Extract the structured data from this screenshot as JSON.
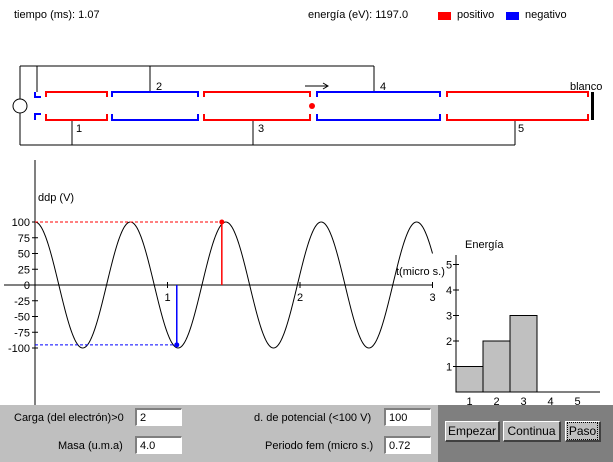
{
  "header": {
    "time_label": "tiempo (ms): 1.07",
    "energy_label": "energía (eV): 1197.0",
    "legend_positive": "positivo",
    "legend_negative": "negativo",
    "positive_color": "#ff0000",
    "negative_color": "#0000ff"
  },
  "accelerator": {
    "target_label": "blanco",
    "tube_labels_top": [
      "2",
      "4"
    ],
    "tube_labels_bottom": [
      "1",
      "3",
      "5"
    ]
  },
  "voltage_chart": {
    "ylabel": "ddp (V)",
    "xlabel": "t(micro s.)",
    "y_ticks": [
      "100",
      "75",
      "50",
      "25",
      "0",
      "-25",
      "-50",
      "-75",
      "-100"
    ],
    "x_ticks": [
      "1",
      "2",
      "3"
    ]
  },
  "energy_chart": {
    "title": "Energía",
    "y_ticks": [
      "1",
      "2",
      "3",
      "4",
      "5"
    ],
    "x_ticks": [
      "1",
      "2",
      "3",
      "4",
      "5"
    ]
  },
  "chart_data": [
    {
      "type": "line",
      "ylabel": "ddp (V)",
      "xlabel": "t(micro s.)",
      "xlim": [
        0,
        3
      ],
      "ylim": [
        -100,
        100
      ],
      "period": 0.72,
      "amplitude": 100,
      "markers": [
        {
          "t": 1.07,
          "v": -95,
          "color": "#0000ff"
        },
        {
          "t": 1.41,
          "v": 100,
          "color": "#ff0000"
        }
      ]
    },
    {
      "type": "bar",
      "title": "Energía",
      "categories": [
        "1",
        "2",
        "3",
        "4",
        "5"
      ],
      "values": [
        1,
        2,
        3,
        0,
        0
      ],
      "ylim": [
        0,
        5
      ]
    }
  ],
  "controls": {
    "charge_label": "Carga (del electrón)>0",
    "charge_value": "2",
    "mass_label": "Masa (u.m.a)",
    "mass_value": "4.0",
    "potential_label": "d. de potencial (<100 V)",
    "potential_value": "100",
    "period_label": "Periodo fem (micro s.)",
    "period_value": "0.72",
    "start_button": "Empezar",
    "continue_button": "Continua",
    "step_button": "Paso"
  }
}
